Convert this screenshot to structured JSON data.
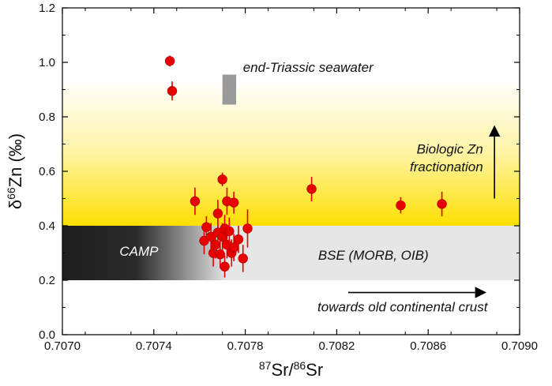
{
  "chart_data": {
    "type": "scatter",
    "title": "",
    "xlabel": "87Sr/86Sr",
    "xlabel_parts": {
      "sup1": "87",
      "mid": "Sr/",
      "sup2": "86",
      "end": "Sr"
    },
    "ylabel": "δ66Zn (‰)",
    "ylabel_parts": {
      "pre": "δ",
      "sup": "66",
      "main": "Zn (‰)"
    },
    "xlim": [
      0.707,
      0.709
    ],
    "ylim": [
      0.0,
      1.2
    ],
    "xticks": [
      0.707,
      0.7074,
      0.7078,
      0.7082,
      0.7086,
      0.709
    ],
    "xtick_labels": [
      "0.7070",
      "0.7074",
      "0.7078",
      "0.7082",
      "0.7086",
      "0.7090"
    ],
    "yticks": [
      0.0,
      0.2,
      0.4,
      0.6,
      0.8,
      1.0,
      1.2
    ],
    "ytick_labels": [
      "0.0",
      "0.2",
      "0.4",
      "0.6",
      "0.8",
      "1.0",
      "1.2"
    ],
    "series": [
      {
        "name": "samples",
        "color": "#e60000",
        "points": [
          {
            "x": 0.70747,
            "y": 1.005,
            "err": 0.02
          },
          {
            "x": 0.70748,
            "y": 0.895,
            "err": 0.035
          },
          {
            "x": 0.70758,
            "y": 0.49,
            "err": 0.05
          },
          {
            "x": 0.70762,
            "y": 0.345,
            "err": 0.05
          },
          {
            "x": 0.70763,
            "y": 0.395,
            "err": 0.04
          },
          {
            "x": 0.70765,
            "y": 0.36,
            "err": 0.05
          },
          {
            "x": 0.70766,
            "y": 0.3,
            "err": 0.05
          },
          {
            "x": 0.70767,
            "y": 0.33,
            "err": 0.05
          },
          {
            "x": 0.70768,
            "y": 0.445,
            "err": 0.05
          },
          {
            "x": 0.70768,
            "y": 0.375,
            "err": 0.05
          },
          {
            "x": 0.70769,
            "y": 0.295,
            "err": 0.05
          },
          {
            "x": 0.7077,
            "y": 0.57,
            "err": 0.025
          },
          {
            "x": 0.7077,
            "y": 0.36,
            "err": 0.05
          },
          {
            "x": 0.70771,
            "y": 0.25,
            "err": 0.04
          },
          {
            "x": 0.70771,
            "y": 0.39,
            "err": 0.05
          },
          {
            "x": 0.70772,
            "y": 0.49,
            "err": 0.05
          },
          {
            "x": 0.70772,
            "y": 0.33,
            "err": 0.05
          },
          {
            "x": 0.70773,
            "y": 0.38,
            "err": 0.05
          },
          {
            "x": 0.70774,
            "y": 0.3,
            "err": 0.05
          },
          {
            "x": 0.70775,
            "y": 0.485,
            "err": 0.04
          },
          {
            "x": 0.70775,
            "y": 0.32,
            "err": 0.05
          },
          {
            "x": 0.70777,
            "y": 0.35,
            "err": 0.05
          },
          {
            "x": 0.70779,
            "y": 0.28,
            "err": 0.05
          },
          {
            "x": 0.70781,
            "y": 0.39,
            "err": 0.07
          },
          {
            "x": 0.70809,
            "y": 0.535,
            "err": 0.045
          },
          {
            "x": 0.70848,
            "y": 0.475,
            "err": 0.03
          },
          {
            "x": 0.70866,
            "y": 0.48,
            "err": 0.045
          }
        ]
      }
    ],
    "regions": [
      {
        "name": "yellow-band",
        "y_range": [
          0.4,
          0.94
        ],
        "color": "#fce000"
      },
      {
        "name": "BSE (MORB, OIB)",
        "x_range": [
          0.707,
          0.709
        ],
        "y_range": [
          0.2,
          0.4
        ],
        "color": "#e6e6e6"
      },
      {
        "name": "CAMP",
        "x_range": [
          0.707,
          0.70772
        ],
        "y_range": [
          0.2,
          0.4
        ],
        "color": "#1e1e1e"
      },
      {
        "name": "end-Triassic seawater",
        "x_range": [
          0.7077,
          0.70776
        ],
        "y_range": [
          0.845,
          0.955
        ],
        "color": "#9a9a9a"
      }
    ],
    "annotations": {
      "seawater": "end-Triassic seawater",
      "biologic_1": "Biologic Zn",
      "biologic_2": "fractionation",
      "camp": "CAMP",
      "bse": "BSE (MORB, OIB)",
      "crust": "towards old continental crust"
    },
    "arrows": [
      {
        "name": "biologic-arrow",
        "from": [
          0.70889,
          0.5
        ],
        "to": [
          0.70889,
          0.765
        ]
      },
      {
        "name": "crust-arrow",
        "from": [
          0.70825,
          0.155
        ],
        "to": [
          0.70885,
          0.155
        ]
      }
    ],
    "grid": false,
    "legend": "none"
  }
}
